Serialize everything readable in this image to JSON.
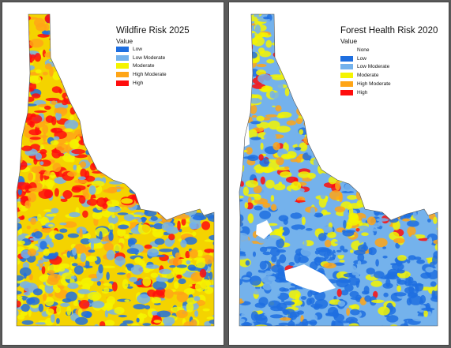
{
  "maps": [
    {
      "id": "wildfire",
      "title": "Wildfire Risk 2025",
      "legend_title": "Value",
      "legend": [
        {
          "label": "Low",
          "color": "#1f6fe0"
        },
        {
          "label": "Low Moderate",
          "color": "#74b2ec"
        },
        {
          "label": "Moderate",
          "color": "#f4f400"
        },
        {
          "label": "High Moderate",
          "color": "#ffa516"
        },
        {
          "label": "High",
          "color": "#ff0d0d"
        }
      ]
    },
    {
      "id": "forest-health",
      "title": "Forest Health Risk 2020",
      "legend_title": "Value",
      "legend": [
        {
          "label": "None",
          "color": "#ffffff"
        },
        {
          "label": "Low",
          "color": "#1f6fe0"
        },
        {
          "label": "Low Moderate",
          "color": "#74b2ec"
        },
        {
          "label": "Moderate",
          "color": "#f4f400"
        },
        {
          "label": "High Moderate",
          "color": "#ffa516"
        },
        {
          "label": "High",
          "color": "#ff0d0d"
        }
      ]
    }
  ]
}
